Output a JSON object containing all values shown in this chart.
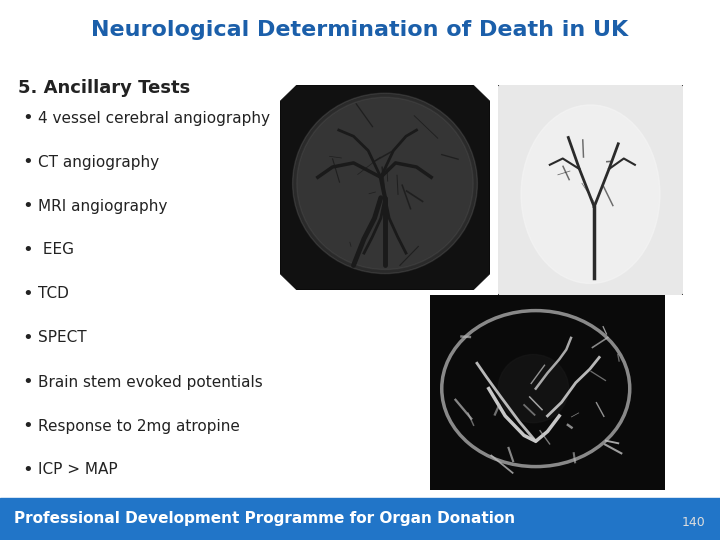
{
  "title": "Neurological Determination of Death in UK",
  "title_color": "#1B5FAA",
  "title_fontsize": 16,
  "section_heading": "5. Ancillary Tests",
  "section_heading_fontsize": 13,
  "bullet_points": [
    "4 vessel cerebral angiography",
    "CT angiography",
    "MRI angiography",
    " EEG",
    "TCD",
    "SPECT",
    "Brain stem evoked potentials",
    "Response to 2mg atropine",
    "ICP > MAP"
  ],
  "bullet_fontsize": 11,
  "bullet_color": "#222222",
  "bullet_symbol": "•",
  "background_color": "#FFFFFF",
  "footer_bg_color": "#2175C8",
  "footer_text": "Professional Development Programme for Organ Donation",
  "footer_text_color": "#FFFFFF",
  "footer_fontsize": 11,
  "page_number": "140",
  "page_number_color": "#DDDDDD"
}
